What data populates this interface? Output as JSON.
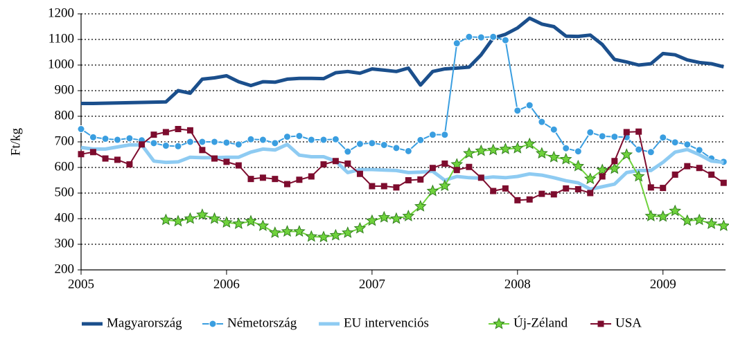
{
  "chart_data": {
    "type": "line",
    "y_label": "Ft/kg",
    "x": [
      2005,
      2005.083,
      2005.167,
      2005.25,
      2005.333,
      2005.417,
      2005.5,
      2005.583,
      2005.667,
      2005.75,
      2005.833,
      2005.917,
      2006,
      2006.083,
      2006.167,
      2006.25,
      2006.333,
      2006.417,
      2006.5,
      2006.583,
      2006.667,
      2006.75,
      2006.833,
      2006.917,
      2007,
      2007.083,
      2007.167,
      2007.25,
      2007.333,
      2007.417,
      2007.5,
      2007.583,
      2007.667,
      2007.75,
      2007.833,
      2007.917,
      2008,
      2008.083,
      2008.167,
      2008.25,
      2008.333,
      2008.417,
      2008.5,
      2008.583,
      2008.667,
      2008.75,
      2008.833,
      2008.917,
      2009,
      2009.083,
      2009.167,
      2009.25,
      2009.333,
      2009.417
    ],
    "xlim": [
      2005,
      2009.43
    ],
    "xticks": [
      2005,
      2006,
      2007,
      2008,
      2009
    ],
    "ylim": [
      200,
      1200
    ],
    "yticks": [
      200,
      300,
      400,
      500,
      600,
      700,
      800,
      900,
      1000,
      1100,
      1200
    ],
    "grid": true,
    "legend": "bottom",
    "series": [
      {
        "name": "Magyarország",
        "color": "#1b4f8c",
        "line_width": 5,
        "marker": "none",
        "values": [
          850,
          850,
          851,
          852,
          853,
          854,
          855,
          856,
          900,
          890,
          945,
          950,
          958,
          935,
          920,
          935,
          933,
          945,
          948,
          948,
          947,
          970,
          975,
          968,
          985,
          980,
          975,
          988,
          922,
          975,
          985,
          988,
          992,
          1040,
          1105,
          1120,
          1145,
          1183,
          1160,
          1150,
          1113,
          1112,
          1117,
          1080,
          1022,
          1012,
          1000,
          1005,
          1045,
          1040,
          1020,
          1010,
          1005,
          993
        ]
      },
      {
        "name": "Németország",
        "color": "#3a9ee0",
        "line_width": 2,
        "marker": "circle",
        "values": [
          750,
          718,
          712,
          708,
          714,
          706,
          695,
          685,
          683,
          700,
          700,
          700,
          697,
          690,
          710,
          708,
          695,
          720,
          723,
          708,
          708,
          710,
          662,
          692,
          695,
          688,
          676,
          664,
          707,
          728,
          728,
          1085,
          1110,
          1108,
          1110,
          1097,
          822,
          843,
          778,
          748,
          675,
          663,
          737,
          722,
          720,
          718,
          670,
          660,
          717,
          698,
          690,
          668,
          635,
          622
        ]
      },
      {
        "name": "EU intervenciós",
        "color": "#8ecbf2",
        "line_width": 5,
        "marker": "none",
        "values": [
          678,
          672,
          672,
          680,
          688,
          688,
          625,
          620,
          622,
          640,
          638,
          638,
          640,
          640,
          660,
          672,
          668,
          690,
          648,
          642,
          642,
          625,
          580,
          592,
          592,
          590,
          588,
          580,
          582,
          585,
          550,
          565,
          560,
          558,
          563,
          560,
          565,
          575,
          570,
          560,
          548,
          540,
          515,
          525,
          535,
          580,
          588,
          588,
          620,
          660,
          670,
          650,
          625,
          620
        ]
      },
      {
        "name": "Új-Zéland",
        "color": "#6fd23c",
        "line_width": 2,
        "marker": "star",
        "values": [
          null,
          null,
          null,
          null,
          null,
          null,
          null,
          395,
          390,
          400,
          415,
          400,
          385,
          380,
          390,
          372,
          345,
          350,
          350,
          330,
          328,
          335,
          345,
          362,
          392,
          405,
          400,
          410,
          448,
          508,
          528,
          612,
          655,
          665,
          668,
          672,
          675,
          692,
          655,
          640,
          632,
          605,
          555,
          590,
          595,
          650,
          565,
          410,
          408,
          430,
          392,
          395,
          380,
          372
        ]
      },
      {
        "name": "USA",
        "color": "#7d0c2e",
        "line_width": 2,
        "marker": "square",
        "values": [
          652,
          660,
          635,
          630,
          612,
          690,
          728,
          738,
          750,
          745,
          668,
          635,
          622,
          608,
          555,
          560,
          555,
          535,
          552,
          565,
          612,
          625,
          615,
          575,
          527,
          527,
          522,
          550,
          553,
          598,
          615,
          590,
          602,
          560,
          508,
          518,
          472,
          475,
          497,
          495,
          518,
          515,
          500,
          565,
          625,
          738,
          740,
          522,
          520,
          572,
          605,
          598,
          572,
          540
        ]
      }
    ]
  }
}
